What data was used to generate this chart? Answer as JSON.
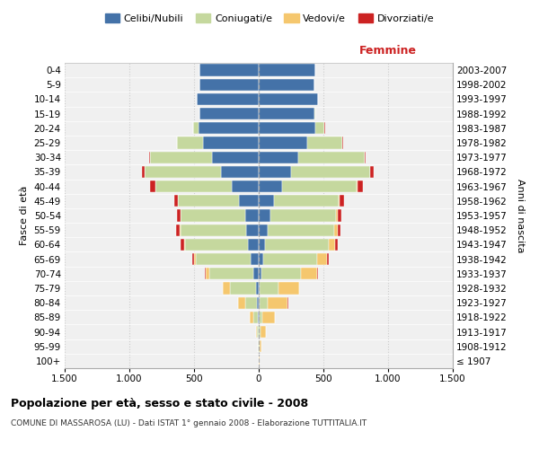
{
  "age_groups": [
    "100+",
    "95-99",
    "90-94",
    "85-89",
    "80-84",
    "75-79",
    "70-74",
    "65-69",
    "60-64",
    "55-59",
    "50-54",
    "45-49",
    "40-44",
    "35-39",
    "30-34",
    "25-29",
    "20-24",
    "15-19",
    "10-14",
    "5-9",
    "0-4"
  ],
  "birth_years": [
    "≤ 1907",
    "1908-1912",
    "1913-1917",
    "1918-1922",
    "1923-1927",
    "1928-1932",
    "1933-1937",
    "1938-1942",
    "1943-1947",
    "1948-1952",
    "1953-1957",
    "1958-1962",
    "1963-1967",
    "1968-1972",
    "1973-1977",
    "1978-1982",
    "1983-1987",
    "1988-1992",
    "1993-1997",
    "1998-2002",
    "2003-2007"
  ],
  "males": {
    "celibi": [
      1,
      2,
      3,
      8,
      12,
      20,
      40,
      65,
      80,
      95,
      105,
      155,
      210,
      290,
      360,
      430,
      465,
      455,
      480,
      455,
      460
    ],
    "coniugati": [
      1,
      3,
      12,
      35,
      90,
      200,
      340,
      420,
      490,
      510,
      500,
      470,
      590,
      590,
      480,
      200,
      40,
      4,
      1,
      0,
      0
    ],
    "vedovi": [
      1,
      3,
      8,
      25,
      55,
      55,
      28,
      12,
      8,
      4,
      2,
      1,
      1,
      0,
      0,
      0,
      0,
      0,
      0,
      0,
      0
    ],
    "divorziati": [
      0,
      0,
      0,
      0,
      2,
      4,
      10,
      18,
      28,
      28,
      22,
      28,
      40,
      22,
      8,
      4,
      2,
      0,
      0,
      0,
      0
    ]
  },
  "females": {
    "nubili": [
      1,
      2,
      3,
      5,
      5,
      8,
      18,
      38,
      52,
      68,
      88,
      118,
      178,
      248,
      305,
      375,
      438,
      428,
      458,
      428,
      438
    ],
    "coniugate": [
      1,
      2,
      8,
      22,
      65,
      148,
      305,
      415,
      492,
      512,
      512,
      502,
      582,
      612,
      512,
      272,
      72,
      8,
      1,
      0,
      0
    ],
    "vedove": [
      4,
      18,
      48,
      95,
      155,
      155,
      128,
      78,
      48,
      28,
      14,
      8,
      4,
      2,
      1,
      0,
      0,
      0,
      0,
      0,
      0
    ],
    "divorziate": [
      0,
      0,
      0,
      0,
      2,
      2,
      4,
      8,
      18,
      22,
      28,
      32,
      42,
      28,
      10,
      4,
      2,
      0,
      0,
      0,
      0
    ]
  },
  "colors": {
    "celibi": "#4472a8",
    "coniugati": "#c5d89e",
    "vedovi": "#f5c76e",
    "divorziati": "#cc2222"
  },
  "xlim": 1500,
  "title": "Popolazione per età, sesso e stato civile - 2008",
  "subtitle": "COMUNE DI MASSAROSA (LU) - Dati ISTAT 1° gennaio 2008 - Elaborazione TUTTITALIA.IT",
  "xlabel_right": "Femmine",
  "ylabel_left": "Fasce di età",
  "ylabel_right": "Anni di nascita",
  "xticks": [
    -1500,
    -1000,
    -500,
    0,
    500,
    1000,
    1500
  ],
  "xtick_labels": [
    "1.500",
    "1.000",
    "500",
    "0",
    "500",
    "1.000",
    "1.500"
  ],
  "background_color": "#f0f0f0",
  "grid_color": "#cccccc"
}
